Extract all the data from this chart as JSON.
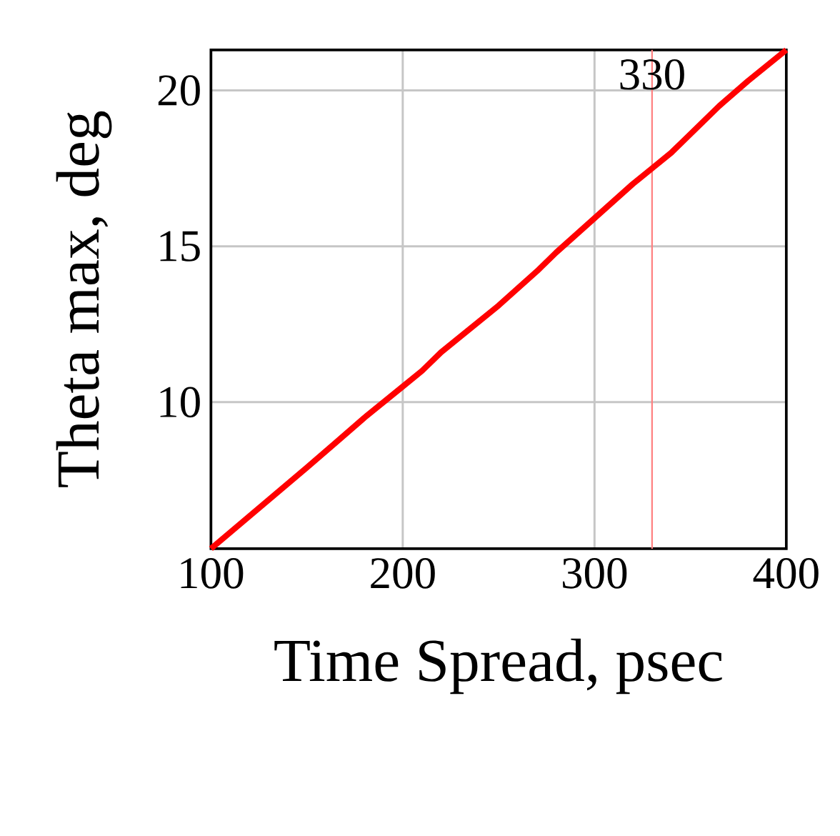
{
  "chart_data": {
    "type": "line",
    "xlabel": "Time Spread, psec",
    "ylabel": "Theta max, deg",
    "x": [
      100,
      125,
      150,
      165,
      180,
      200,
      210,
      220,
      250,
      270,
      280,
      300,
      320,
      330,
      340,
      350,
      365,
      380,
      390,
      400
    ],
    "series": [
      {
        "color": "#ff0000",
        "values": [
          5.3,
          6.6,
          7.9,
          8.7,
          9.5,
          10.5,
          11.0,
          11.6,
          13.1,
          14.2,
          14.8,
          15.9,
          17.0,
          17.5,
          18.0,
          18.6,
          19.5,
          20.3,
          20.8,
          21.3
        ]
      }
    ],
    "xlim": [
      100,
      400
    ],
    "ylim": [
      5.3,
      21.3
    ],
    "xticks": [
      100,
      200,
      300,
      400
    ],
    "yticks": [
      10,
      15,
      20
    ],
    "grid": true,
    "line_style": "solid",
    "marker": "none",
    "ref_lines": [
      {
        "axis": "x",
        "value": 330,
        "label": "330",
        "color": "#ff8080"
      }
    ]
  }
}
